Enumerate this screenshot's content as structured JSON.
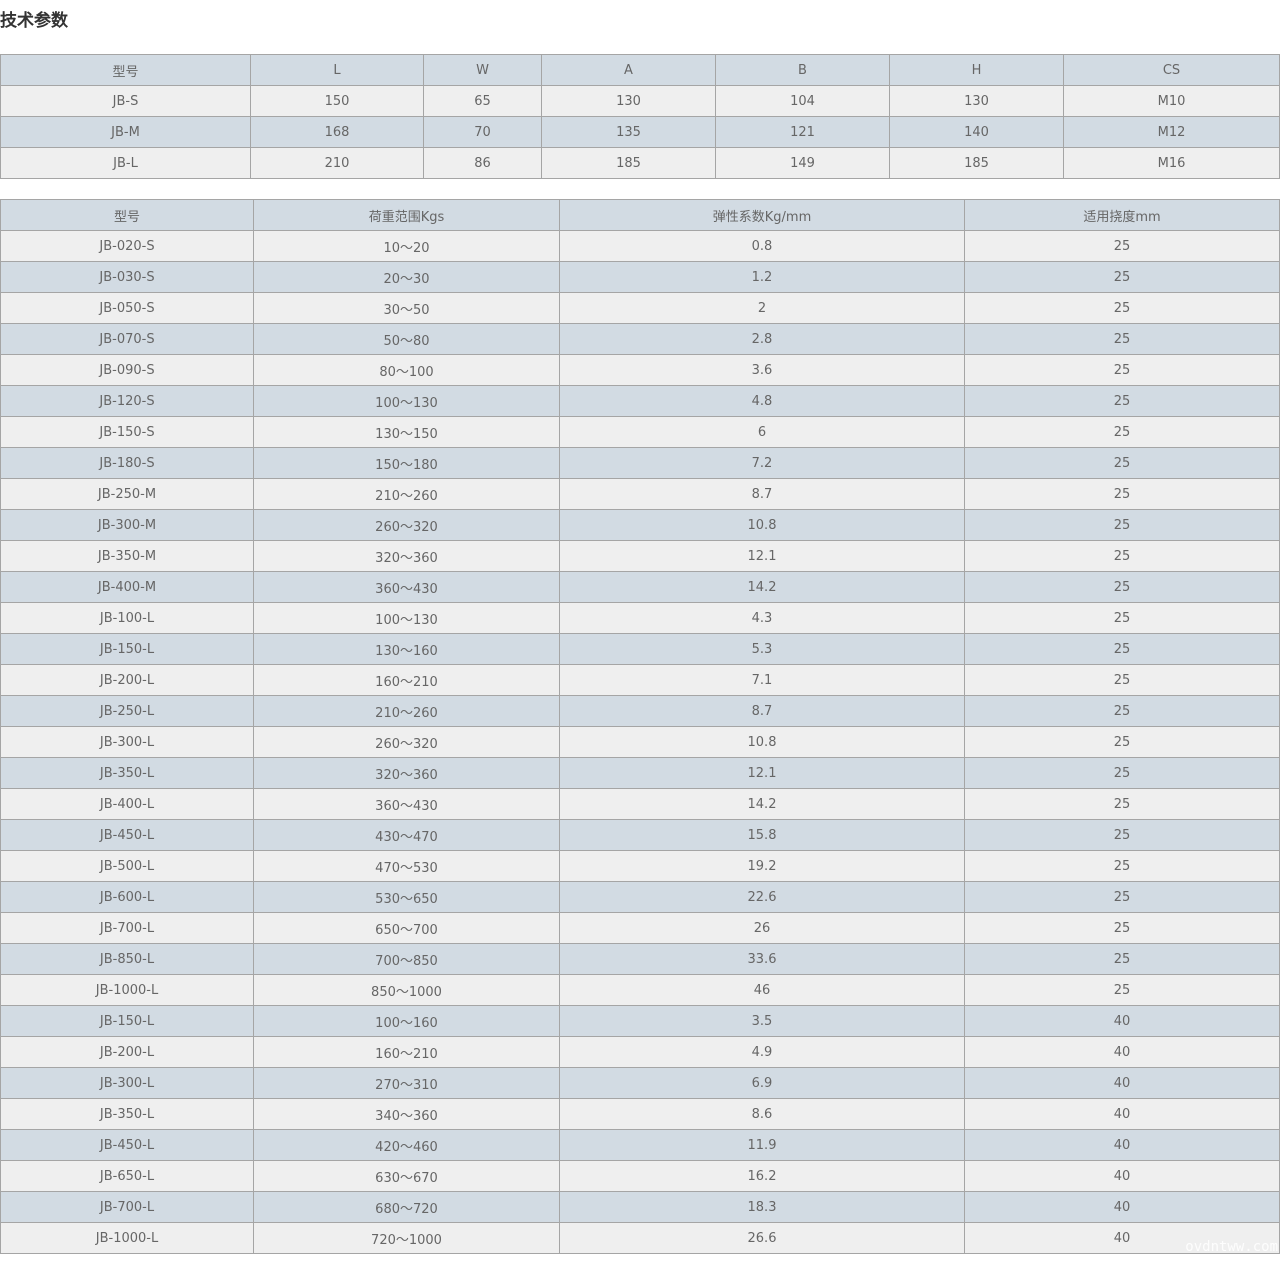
{
  "title": "技术参数",
  "table1": {
    "headers": [
      "型号",
      "L",
      "W",
      "A",
      "B",
      "H",
      "CS"
    ],
    "rows": [
      [
        "JB-S",
        "150",
        "65",
        "130",
        "104",
        "130",
        "M10"
      ],
      [
        "JB-M",
        "168",
        "70",
        "135",
        "121",
        "140",
        "M12"
      ],
      [
        "JB-L",
        "210",
        "86",
        "185",
        "149",
        "185",
        "M16"
      ]
    ]
  },
  "table2": {
    "headers": [
      "型号",
      "荷重范围Kgs",
      "弹性系数Kg/mm",
      "适用挠度mm"
    ],
    "rows": [
      [
        "JB-020-S",
        "10～20",
        "0.8",
        "25"
      ],
      [
        "JB-030-S",
        "20～30",
        "1.2",
        "25"
      ],
      [
        "JB-050-S",
        "30～50",
        "2",
        "25"
      ],
      [
        "JB-070-S",
        "50～80",
        "2.8",
        "25"
      ],
      [
        "JB-090-S",
        "80～100",
        "3.6",
        "25"
      ],
      [
        "JB-120-S",
        "100～130",
        "4.8",
        "25"
      ],
      [
        "JB-150-S",
        "130～150",
        "6",
        "25"
      ],
      [
        "JB-180-S",
        "150～180",
        "7.2",
        "25"
      ],
      [
        "JB-250-M",
        "210～260",
        "8.7",
        "25"
      ],
      [
        "JB-300-M",
        "260～320",
        "10.8",
        "25"
      ],
      [
        "JB-350-M",
        "320～360",
        "12.1",
        "25"
      ],
      [
        "JB-400-M",
        "360～430",
        "14.2",
        "25"
      ],
      [
        "JB-100-L",
        "100～130",
        "4.3",
        "25"
      ],
      [
        "JB-150-L",
        "130～160",
        "5.3",
        "25"
      ],
      [
        "JB-200-L",
        "160～210",
        "7.1",
        "25"
      ],
      [
        "JB-250-L",
        "210～260",
        "8.7",
        "25"
      ],
      [
        "JB-300-L",
        "260～320",
        "10.8",
        "25"
      ],
      [
        "JB-350-L",
        "320～360",
        "12.1",
        "25"
      ],
      [
        "JB-400-L",
        "360～430",
        "14.2",
        "25"
      ],
      [
        "JB-450-L",
        "430～470",
        "15.8",
        "25"
      ],
      [
        "JB-500-L",
        "470～530",
        "19.2",
        "25"
      ],
      [
        "JB-600-L",
        "530～650",
        "22.6",
        "25"
      ],
      [
        "JB-700-L",
        "650～700",
        "26",
        "25"
      ],
      [
        "JB-850-L",
        "700～850",
        "33.6",
        "25"
      ],
      [
        "JB-1000-L",
        "850～1000",
        "46",
        "25"
      ],
      [
        "JB-150-L",
        "100～160",
        "3.5",
        "40"
      ],
      [
        "JB-200-L",
        "160～210",
        "4.9",
        "40"
      ],
      [
        "JB-300-L",
        "270～310",
        "6.9",
        "40"
      ],
      [
        "JB-350-L",
        "340～360",
        "8.6",
        "40"
      ],
      [
        "JB-450-L",
        "420～460",
        "11.9",
        "40"
      ],
      [
        "JB-650-L",
        "630～670",
        "16.2",
        "40"
      ],
      [
        "JB-700-L",
        "680～720",
        "18.3",
        "40"
      ],
      [
        "JB-1000-L",
        "720～1000",
        "26.6",
        "40"
      ]
    ]
  },
  "watermark": "ovdntww.com",
  "colors": {
    "header_row": "#d2dbe3",
    "alt_row": "#efefef",
    "border": "#a5a5a5"
  }
}
